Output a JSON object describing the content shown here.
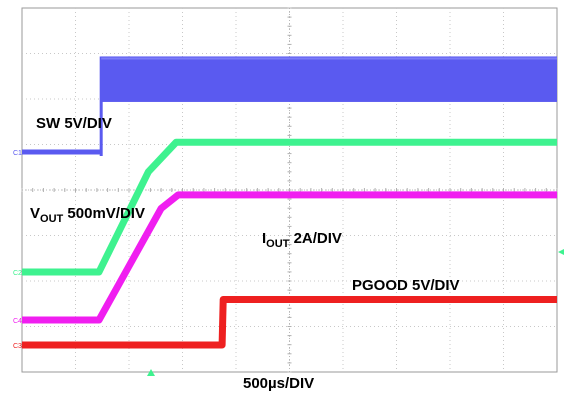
{
  "chart_data": {
    "type": "line",
    "title": "",
    "xlabel": "500µs/DIV",
    "x_unit": "µs",
    "x_per_div": 500,
    "divisions": {
      "horizontal": 10,
      "vertical": 8
    },
    "xlim": [
      0,
      5000
    ],
    "grid": true,
    "series": [
      {
        "name": "SW",
        "label": "SW 5V/DIV",
        "channel": "C1",
        "color": "#5a5af0",
        "points": [
          [
            0,
            0
          ],
          [
            740,
            0
          ],
          [
            740,
            2.1
          ],
          [
            5000,
            2.1
          ]
        ],
        "band_after_us": 740,
        "band_width_div": 1.0
      },
      {
        "name": "VOUT",
        "label_main": "V",
        "label_sub": "OUT",
        "label_rest": " 500mV/DIV",
        "channel": "C2",
        "color": "#3ef28f",
        "points": [
          [
            0,
            0
          ],
          [
            720,
            0
          ],
          [
            1180,
            2.2
          ],
          [
            1440,
            2.85
          ],
          [
            5000,
            2.85
          ]
        ]
      },
      {
        "name": "IOUT",
        "label_main": "I",
        "label_sub": "OUT",
        "label_rest": " 2A/DIV",
        "channel": "C4",
        "color": "#f01ef0",
        "points": [
          [
            0,
            0
          ],
          [
            720,
            0
          ],
          [
            1300,
            2.45
          ],
          [
            1460,
            2.75
          ],
          [
            5000,
            2.75
          ]
        ]
      },
      {
        "name": "PGOOD",
        "label": "PGOOD 5V/DIV",
        "channel": "C3",
        "color": "#ee2020",
        "points": [
          [
            0,
            0
          ],
          [
            1870,
            0
          ],
          [
            1880,
            1.0
          ],
          [
            5000,
            1.0
          ]
        ]
      }
    ]
  }
}
